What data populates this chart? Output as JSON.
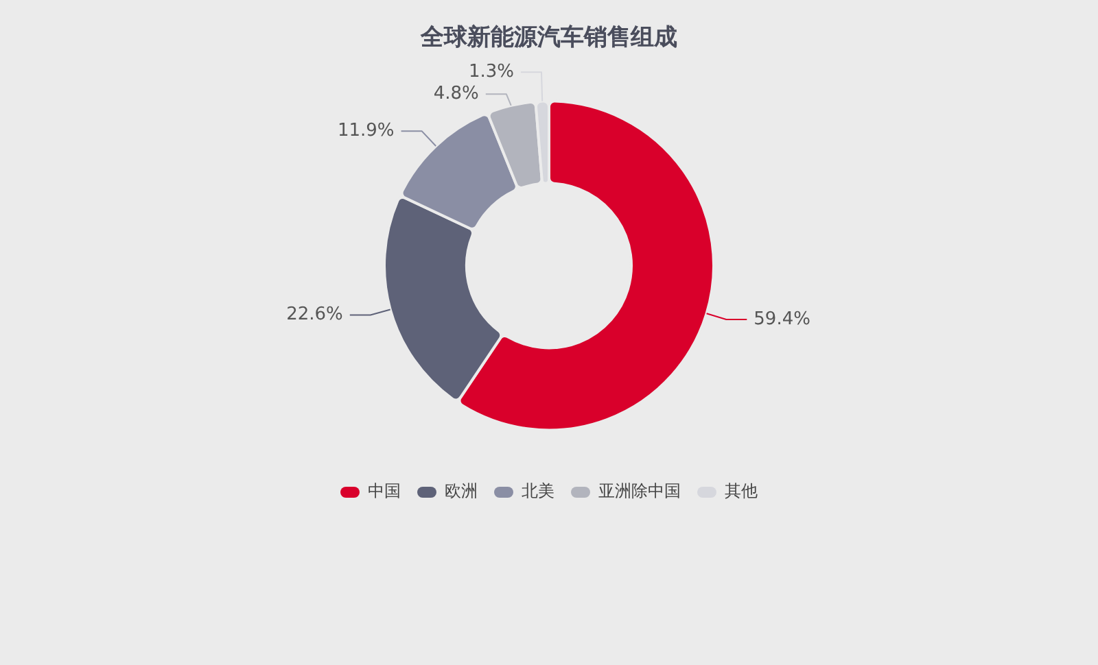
{
  "chart_data": {
    "type": "donut",
    "title": "全球新能源汽车销售组成",
    "categories": [
      "中国",
      "欧洲",
      "北美",
      "亚洲除中国",
      "其他"
    ],
    "values": [
      59.4,
      22.6,
      11.9,
      4.8,
      1.3
    ],
    "colors": [
      "#d9002b",
      "#5e6278",
      "#8a8ea4",
      "#b2b4bd",
      "#d6d7dd"
    ],
    "value_labels": [
      "59.4%",
      "22.6%",
      "11.9%",
      "4.8%",
      "1.3%"
    ],
    "legend": "bottom"
  }
}
